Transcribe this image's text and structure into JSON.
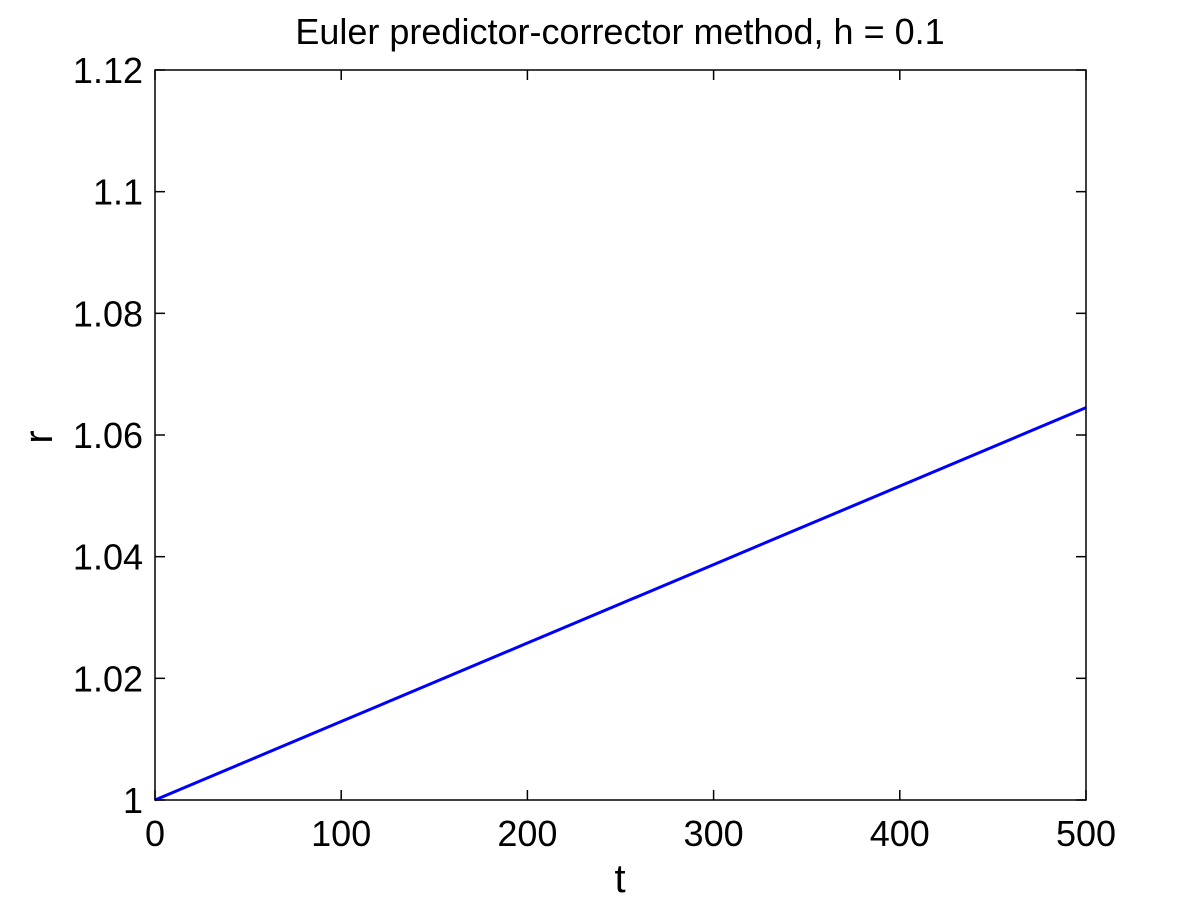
{
  "chart_data": {
    "type": "line",
    "title": "Euler predictor-corrector method, h = 0.1",
    "xlabel": "t",
    "ylabel": "r",
    "xlim": [
      0,
      500
    ],
    "ylim": [
      1,
      1.12
    ],
    "x_ticks": [
      0,
      100,
      200,
      300,
      400,
      500
    ],
    "x_tick_labels": [
      "0",
      "100",
      "200",
      "300",
      "400",
      "500"
    ],
    "y_ticks": [
      1,
      1.02,
      1.04,
      1.06,
      1.08,
      1.1,
      1.12
    ],
    "y_tick_labels": [
      "1",
      "1.02",
      "1.04",
      "1.06",
      "1.08",
      "1.1",
      "1.12"
    ],
    "grid": false,
    "series": [
      {
        "color": "#0000ff",
        "x": [
          0,
          100,
          200,
          300,
          400,
          500
        ],
        "y": [
          1.0,
          1.0129,
          1.0258,
          1.0387,
          1.0516,
          1.0645
        ]
      }
    ]
  }
}
